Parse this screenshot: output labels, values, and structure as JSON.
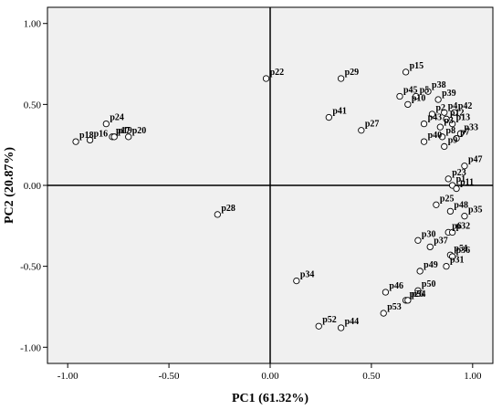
{
  "chart_data": {
    "type": "scatter",
    "xlabel": "PC1 (61.32%)",
    "ylabel": "PC2 (20.87%)",
    "xlim": [
      -1.1,
      1.1
    ],
    "ylim": [
      -1.1,
      1.1
    ],
    "x_ticks": [
      -1.0,
      -0.5,
      0.0,
      0.5,
      1.0
    ],
    "x_tick_labels": [
      "-1.00",
      "-0.50",
      "0.00",
      "0.50",
      "1.00"
    ],
    "y_ticks": [
      -1.0,
      -0.5,
      0.0,
      0.5,
      1.0
    ],
    "y_tick_labels": [
      "-1.00",
      "-0.50",
      "0.00",
      "0.50",
      "1.00"
    ],
    "grid": false,
    "reference_lines": {
      "x": 0,
      "y": 0
    },
    "colors": {
      "plot_bg": "#f0f0f0",
      "marker_edge": "#000000",
      "marker_fill": "#ffffff"
    },
    "points": [
      {
        "label": "p18",
        "x": -0.96,
        "y": 0.27
      },
      {
        "label": "p16",
        "x": -0.89,
        "y": 0.28
      },
      {
        "label": "p24",
        "x": -0.81,
        "y": 0.38
      },
      {
        "label": "p17",
        "x": -0.78,
        "y": 0.3
      },
      {
        "label": "p20",
        "x": -0.7,
        "y": 0.3
      },
      {
        "label": "p19",
        "x": -0.77,
        "y": 0.3
      },
      {
        "label": "p22",
        "x": -0.02,
        "y": 0.66
      },
      {
        "label": "p28",
        "x": -0.26,
        "y": -0.18
      },
      {
        "label": "p29",
        "x": 0.35,
        "y": 0.66
      },
      {
        "label": "p41",
        "x": 0.29,
        "y": 0.42
      },
      {
        "label": "p27",
        "x": 0.45,
        "y": 0.34
      },
      {
        "label": "p15",
        "x": 0.67,
        "y": 0.7
      },
      {
        "label": "p45",
        "x": 0.64,
        "y": 0.55
      },
      {
        "label": "p5",
        "x": 0.72,
        "y": 0.55
      },
      {
        "label": "p38",
        "x": 0.78,
        "y": 0.58
      },
      {
        "label": "p39",
        "x": 0.83,
        "y": 0.53
      },
      {
        "label": "p10",
        "x": 0.68,
        "y": 0.5
      },
      {
        "label": "p2",
        "x": 0.8,
        "y": 0.44
      },
      {
        "label": "p4",
        "x": 0.86,
        "y": 0.45
      },
      {
        "label": "p42",
        "x": 0.91,
        "y": 0.45
      },
      {
        "label": "p12",
        "x": 0.87,
        "y": 0.41
      },
      {
        "label": "p43",
        "x": 0.76,
        "y": 0.38
      },
      {
        "label": "p3",
        "x": 0.84,
        "y": 0.36
      },
      {
        "label": "p13",
        "x": 0.9,
        "y": 0.38
      },
      {
        "label": "p33",
        "x": 0.94,
        "y": 0.32
      },
      {
        "label": "p40",
        "x": 0.76,
        "y": 0.27
      },
      {
        "label": "p8",
        "x": 0.85,
        "y": 0.3
      },
      {
        "label": "p7",
        "x": 0.92,
        "y": 0.29
      },
      {
        "label": "p9",
        "x": 0.86,
        "y": 0.24
      },
      {
        "label": "p47",
        "x": 0.96,
        "y": 0.12
      },
      {
        "label": "p23",
        "x": 0.88,
        "y": 0.04
      },
      {
        "label": "p1",
        "x": 0.9,
        "y": 0.0
      },
      {
        "label": "p11",
        "x": 0.92,
        "y": -0.02
      },
      {
        "label": "p25",
        "x": 0.82,
        "y": -0.12
      },
      {
        "label": "p48",
        "x": 0.89,
        "y": -0.16
      },
      {
        "label": "p35",
        "x": 0.96,
        "y": -0.19
      },
      {
        "label": "p6",
        "x": 0.88,
        "y": -0.29
      },
      {
        "label": "p32",
        "x": 0.9,
        "y": -0.29
      },
      {
        "label": "p30",
        "x": 0.73,
        "y": -0.34
      },
      {
        "label": "p37",
        "x": 0.79,
        "y": -0.38
      },
      {
        "label": "p51",
        "x": 0.89,
        "y": -0.43
      },
      {
        "label": "p36",
        "x": 0.9,
        "y": -0.44
      },
      {
        "label": "p49",
        "x": 0.74,
        "y": -0.53
      },
      {
        "label": "p31",
        "x": 0.87,
        "y": -0.5
      },
      {
        "label": "p50",
        "x": 0.73,
        "y": -0.65
      },
      {
        "label": "p46",
        "x": 0.57,
        "y": -0.66
      },
      {
        "label": "p26",
        "x": 0.67,
        "y": -0.71
      },
      {
        "label": "p34",
        "x": 0.13,
        "y": -0.59
      },
      {
        "label": "p52",
        "x": 0.24,
        "y": -0.87
      },
      {
        "label": "p44",
        "x": 0.35,
        "y": -0.88
      },
      {
        "label": "p53",
        "x": 0.56,
        "y": -0.79
      },
      {
        "label": "p54",
        "x": 0.68,
        "y": -0.71
      }
    ]
  }
}
